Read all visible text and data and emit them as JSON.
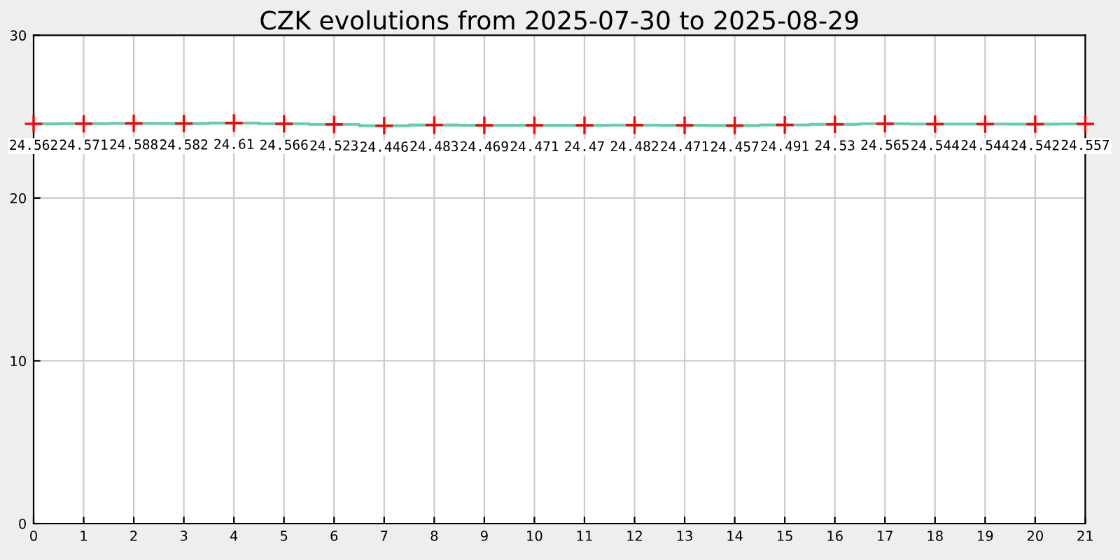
{
  "chart_data": {
    "type": "step",
    "title": "CZK evolutions from 2025-07-30 to 2025-08-29",
    "x": [
      0,
      1,
      2,
      3,
      4,
      5,
      6,
      7,
      8,
      9,
      10,
      11,
      12,
      13,
      14,
      15,
      16,
      17,
      18,
      19,
      20,
      21
    ],
    "values": [
      24.562,
      24.571,
      24.588,
      24.582,
      24.61,
      24.566,
      24.523,
      24.446,
      24.483,
      24.469,
      24.471,
      24.47,
      24.482,
      24.471,
      24.457,
      24.491,
      24.53,
      24.565,
      24.544,
      24.544,
      24.542,
      24.557
    ],
    "color": "#66ccaa",
    "marker": "cross",
    "colors": [
      "#ff0000",
      "#ff0000",
      "#ff0000",
      "#ff0000",
      "#ff0000",
      "#ff0000",
      "#ff0000",
      "#ff0000",
      "#ff0000",
      "#ff0000",
      "#ff0000",
      "#ff0000",
      "#ff0000",
      "#ff0000",
      "#ff0000",
      "#ff0000",
      "#ff0000",
      "#ff0000",
      "#ff0000",
      "#ff0000",
      "#ff0000",
      "#ff0000"
    ],
    "data_labels": true,
    "xlim": [
      0,
      21
    ],
    "xticks": [
      0,
      1,
      2,
      3,
      4,
      5,
      6,
      7,
      8,
      9,
      10,
      11,
      12,
      13,
      14,
      15,
      16,
      17,
      18,
      19,
      20,
      21
    ],
    "ylim": [
      0,
      30
    ],
    "yticks": [
      0,
      10,
      20,
      30
    ],
    "grid": true,
    "legend": false
  }
}
